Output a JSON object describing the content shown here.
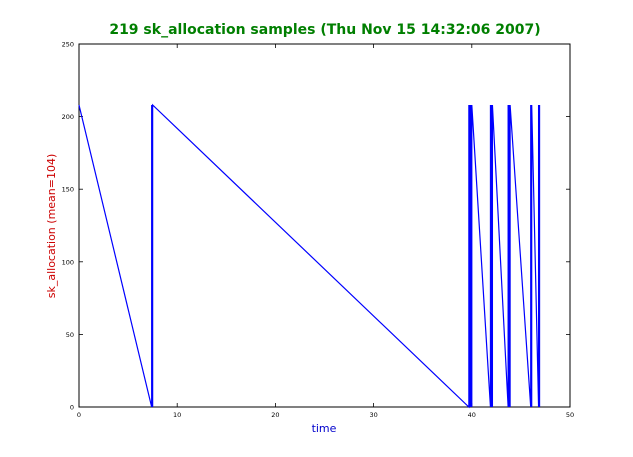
{
  "chart_data": {
    "type": "line",
    "title": "219 sk_allocation samples (Thu Nov 15 14:32:06 2007)",
    "xlabel": "time",
    "ylabel": "sk_allocation (mean=104)",
    "xlim": [
      0,
      50
    ],
    "ylim": [
      0,
      250
    ],
    "xticks": [
      "0",
      "10",
      "20",
      "30",
      "40",
      "50"
    ],
    "yticks": [
      "0",
      "50",
      "100",
      "150",
      "200",
      "250"
    ],
    "grid": false,
    "legend": "none",
    "colors": {
      "title": "#007f00",
      "xlabel": "#0000cc",
      "ylabel": "#cc0000",
      "line": "#0000ff"
    },
    "series": [
      {
        "x": [
          0,
          7.4,
          7.4,
          7.5,
          7.5,
          39.7,
          39.7,
          39.8,
          39.8,
          39.9,
          39.9,
          40.0,
          40.0,
          41.9,
          41.9,
          42.0,
          42.0,
          42.1,
          42.1,
          43.7,
          43.7,
          43.8,
          43.8,
          43.9,
          43.9,
          46.0,
          46.0,
          46.1,
          46.1,
          46.8,
          46.8,
          46.9,
          46.9
        ],
        "y": [
          208,
          0,
          208,
          0,
          208,
          0,
          208,
          0,
          208,
          0,
          208,
          0,
          208,
          0,
          208,
          0,
          208,
          0,
          208,
          0,
          208,
          0,
          208,
          0,
          208,
          0,
          208,
          0,
          208,
          0,
          208,
          0,
          208
        ]
      }
    ]
  }
}
